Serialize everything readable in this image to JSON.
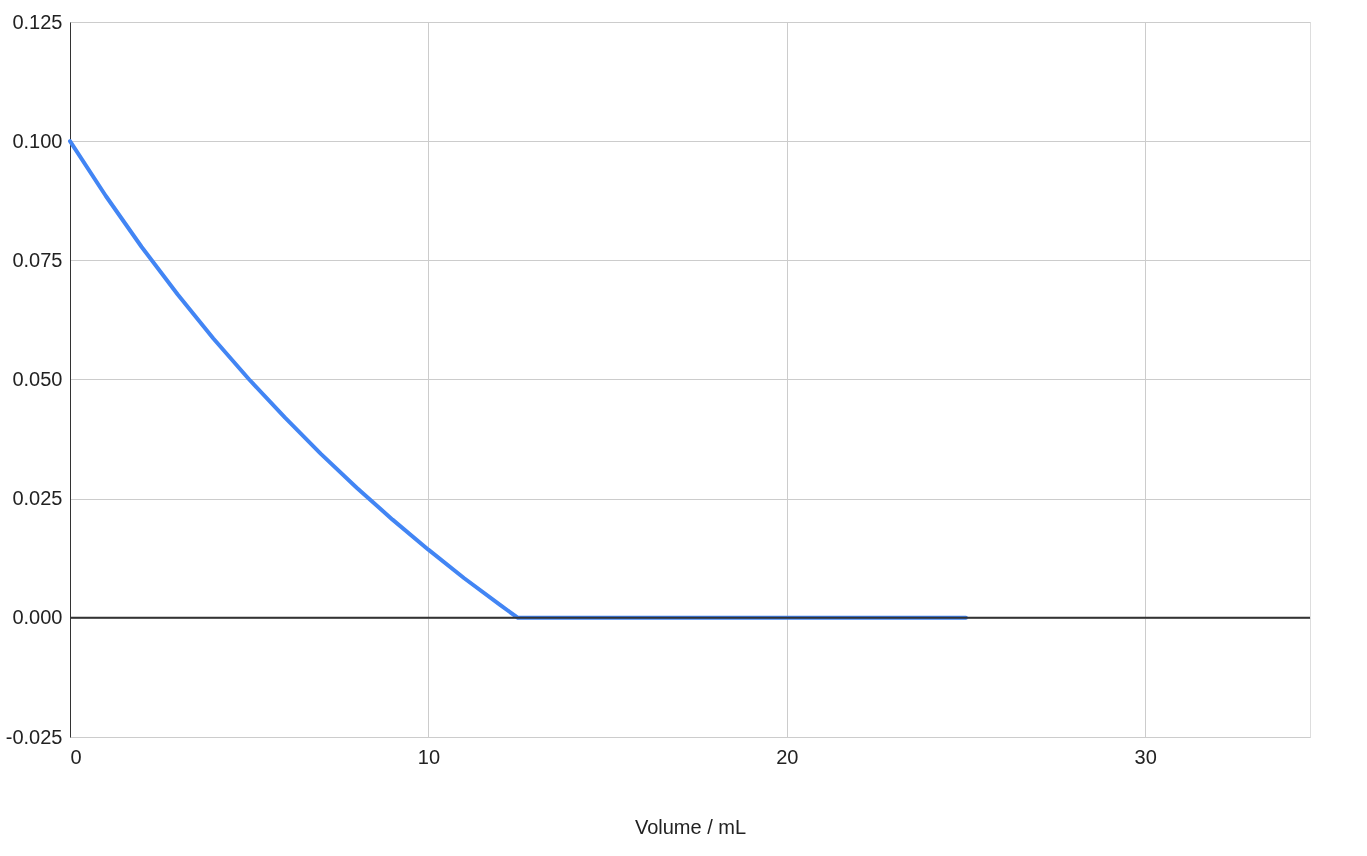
{
  "chart_data": {
    "type": "line",
    "xlabel": "Volume / mL",
    "x": [
      0,
      1,
      2,
      3,
      4,
      5,
      6,
      7,
      8,
      9,
      10,
      11,
      12,
      12.5,
      25
    ],
    "series": [
      {
        "color": "#4285f4",
        "values": [
          0.1,
          0.0885,
          0.0778,
          0.0679,
          0.0586,
          0.05,
          0.042,
          0.0344,
          0.0273,
          0.0206,
          0.0143,
          0.0083,
          0.0027,
          0,
          0
        ]
      }
    ],
    "xlim": [
      0,
      34.6
    ],
    "xticks": [
      0,
      10,
      20,
      30
    ],
    "ylim": [
      -0.025,
      0.125
    ],
    "yticks": [
      {
        "value": -0.025,
        "label": "-0.025"
      },
      {
        "value": 0,
        "label": "0.000"
      },
      {
        "value": 0.025,
        "label": "0.025"
      },
      {
        "value": 0.05,
        "label": "0.050"
      },
      {
        "value": 0.075,
        "label": "0.075"
      },
      {
        "value": 0.1,
        "label": "0.100"
      },
      {
        "value": 0.125,
        "label": "0.125"
      }
    ],
    "ref_lines": [
      {
        "axis": "y",
        "value": 0,
        "color": "#333333"
      }
    ],
    "grid": true,
    "marker": "none",
    "line_style": "solid"
  }
}
